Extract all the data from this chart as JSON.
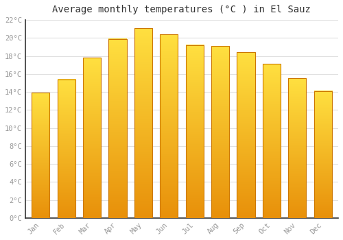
{
  "title": "Average monthly temperatures (°C ) in El Sauz",
  "months": [
    "Jan",
    "Feb",
    "Mar",
    "Apr",
    "May",
    "Jun",
    "Jul",
    "Aug",
    "Sep",
    "Oct",
    "Nov",
    "Dec"
  ],
  "values": [
    13.9,
    15.4,
    17.8,
    19.9,
    21.1,
    20.4,
    19.2,
    19.1,
    18.4,
    17.1,
    15.5,
    14.1
  ],
  "bar_color_main": "#FFA500",
  "bar_color_light": "#FFD000",
  "bar_edge_color": "#CC7700",
  "ylim": [
    0,
    22
  ],
  "yticks": [
    0,
    2,
    4,
    6,
    8,
    10,
    12,
    14,
    16,
    18,
    20,
    22
  ],
  "ytick_labels": [
    "0°C",
    "2°C",
    "4°C",
    "6°C",
    "8°C",
    "10°C",
    "12°C",
    "14°C",
    "16°C",
    "18°C",
    "20°C",
    "22°C"
  ],
  "background_color": "#ffffff",
  "grid_color": "#e0e0e0",
  "title_fontsize": 10,
  "tick_fontsize": 7.5,
  "tick_color": "#999999",
  "font_family": "monospace",
  "bar_width": 0.7,
  "spine_color": "#333333"
}
